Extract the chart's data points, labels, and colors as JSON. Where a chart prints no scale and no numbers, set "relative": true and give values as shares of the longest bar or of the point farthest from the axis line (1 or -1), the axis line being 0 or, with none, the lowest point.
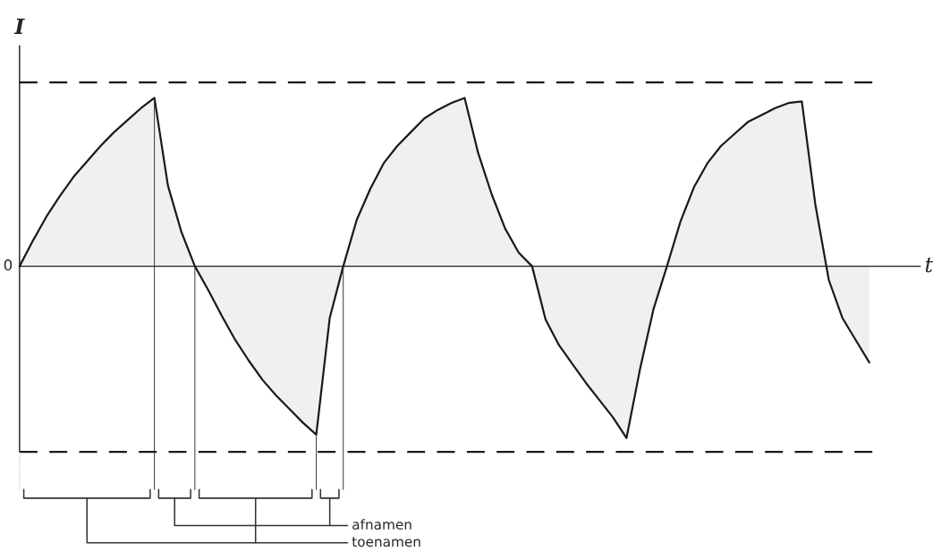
{
  "chart_data": {
    "type": "area",
    "relative": true,
    "xlabel": "t",
    "ylabel": "I",
    "categories": [
      null,
      null,
      null,
      null,
      null,
      null,
      null,
      null,
      null,
      null,
      null,
      null,
      null,
      null,
      null,
      null,
      null,
      null,
      null,
      null,
      null,
      null,
      null,
      null,
      null,
      null,
      null,
      null,
      null,
      null,
      null,
      null,
      null,
      null,
      null,
      null,
      null,
      null,
      null,
      null,
      null,
      null,
      null,
      null,
      null,
      null,
      null,
      null,
      null,
      null,
      null,
      null,
      null,
      null,
      null,
      null,
      null,
      null,
      null,
      null,
      null,
      null,
      null,
      null
    ],
    "series": [
      {
        "color": "#1a1a1a",
        "values": [
          0,
          0.15,
          0.29,
          0.41,
          0.52,
          0.61,
          0.7,
          0.78,
          0.85,
          0.92,
          0.98,
          0.47,
          0.2,
          0,
          -0.14,
          -0.29,
          -0.43,
          -0.55,
          -0.66,
          -0.75,
          -0.83,
          -0.91,
          -0.98,
          -0.3,
          0,
          0.27,
          0.45,
          0.6,
          0.7,
          0.78,
          0.86,
          0.91,
          0.95,
          0.98,
          0.66,
          0.42,
          0.22,
          0.08,
          0,
          -0.31,
          -0.46,
          -0.57,
          -0.68,
          -0.78,
          -0.88,
          -1,
          -0.6,
          -0.25,
          0,
          0.26,
          0.46,
          0.6,
          0.7,
          0.77,
          0.84,
          0.88,
          0.92,
          0.95,
          0.96,
          0.36,
          -0.08,
          -0.3,
          -0.43,
          -0.56
        ]
      }
    ],
    "ref_lines": [
      {
        "axis": "y",
        "value": 1.07,
        "color": "#1a1a1a",
        "line_style": "dashed"
      },
      {
        "axis": "y",
        "value": -1.08,
        "color": "#1a1a1a",
        "line_style": "dashed"
      }
    ],
    "annotations": [
      "0",
      "afnamen",
      "toenamen"
    ],
    "legend": false
  }
}
